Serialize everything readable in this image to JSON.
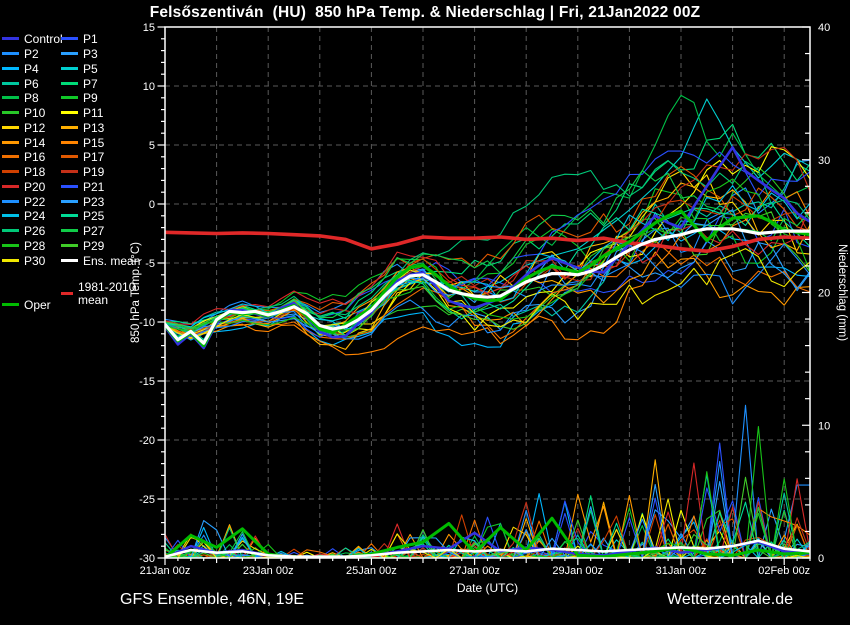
{
  "title": "Felsőszentiván  (HU)  850 hPa Temp. & Niederschlag | Fri, 21Jan2022 00Z",
  "footer": {
    "left": "GFS Ensemble, 46N, 19E",
    "right": "Wetterzentrale.de"
  },
  "axes": {
    "x_label": "Date (UTC)",
    "y_left_label": "850 hPa Temp. (°C)",
    "y_right_label": "Niederschlag (mm)",
    "y_left_ticks": [
      15,
      10,
      5,
      0,
      -5,
      -10,
      -15,
      -20,
      -25,
      -30
    ],
    "y_right_ticks": [
      40,
      30,
      20,
      10,
      0
    ],
    "x_tick_labels": [
      "21Jan 00z",
      "23Jan 00z",
      "25Jan 00z",
      "27Jan 00z",
      "29Jan 00z",
      "31Jan 00z",
      "02Feb 00z"
    ],
    "x_tick_days": [
      0,
      2,
      4,
      6,
      8,
      10,
      12
    ]
  },
  "legend": {
    "ens_mean_label": "Ens. mean",
    "climate_label": "1981-2010 mean",
    "oper_label": "Oper"
  },
  "chart_data": {
    "type": "line",
    "x_start": "21Jan2022 00Z",
    "x_days": 12.5,
    "explicit_step_hours": 6,
    "anchor_step_hours": 12,
    "temp_axis_range": [
      -30,
      15
    ],
    "precip_axis_range": [
      0,
      40
    ],
    "grid": {
      "x_every_days": 1,
      "y_every_degC": 5
    },
    "colors": {
      "ens_mean": "#ffffff",
      "climate_mean": "#e02828",
      "oper": "#00bb00",
      "control": "#3333e0"
    },
    "ens_mean_temp": [
      -10.2,
      -11.5,
      -10.8,
      -11.8,
      -9.8,
      -9.1,
      -9.2,
      -9.1,
      -9.4,
      -9.1,
      -8.7,
      -9.3,
      -10.3,
      -10.6,
      -10.4,
      -9.8,
      -9.0,
      -7.8,
      -6.8,
      -6.1,
      -6.0,
      -6.6,
      -7.3,
      -7.6,
      -7.8,
      -7.9,
      -7.8,
      -7.2,
      -6.6,
      -6.2,
      -5.9,
      -5.9,
      -6.0,
      -5.7,
      -5.2,
      -4.5,
      -3.9,
      -3.4,
      -3.0,
      -2.8,
      -2.6,
      -2.3,
      -2.1,
      -2.1,
      -2.1,
      -2.3,
      -2.5,
      -2.4,
      -2.3,
      -2.3,
      -2.3
    ],
    "oper_temp": [
      -10.3,
      -11.6,
      -10.9,
      -12.0,
      -9.9,
      -9.2,
      -9.3,
      -9.2,
      -9.5,
      -9.0,
      -8.6,
      -9.5,
      -10.6,
      -10.9,
      -10.2,
      -9.5,
      -8.8,
      -7.4,
      -6.2,
      -5.4,
      -5.2,
      -6.0,
      -6.9,
      -7.6,
      -8.0,
      -8.2,
      -8.1,
      -7.2,
      -6.3,
      -5.7,
      -5.3,
      -5.5,
      -5.8,
      -5.2,
      -4.4,
      -3.8,
      -3.2,
      -2.4,
      -1.6,
      -1.0,
      -0.6,
      -1.8,
      -3.1,
      -2.0,
      -1.2,
      -1.1,
      -1.0,
      -1.5,
      -2.2,
      -2.4,
      -2.6
    ],
    "control_temp": [
      -10.4,
      -11.9,
      -11.0,
      -12.2,
      -10.1,
      -9.0,
      -9.0,
      -9.3,
      -9.6,
      -8.8,
      -8.4,
      -9.6,
      -10.8,
      -11.3,
      -11.2,
      -10.1,
      -9.2,
      -7.8,
      -6.5,
      -6.0,
      -5.8,
      -7.0,
      -8.2,
      -8.6,
      -8.8,
      -8.4,
      -8.0,
      -7.0,
      -6.0,
      -5.2,
      -4.6,
      -5.0,
      -5.4,
      -5.7,
      -5.8,
      -4.6,
      -3.4,
      -2.2,
      -1.0,
      -1.6,
      -2.0,
      -0.2,
      1.5,
      3.2,
      4.8,
      2.8,
      2.0,
      1.2,
      0.5,
      -0.8,
      -1.5
    ],
    "member_P5_temp": [
      -10.1,
      -11.3,
      -10.6,
      -11.5,
      -9.7,
      -9.2,
      -9.5,
      -9.3,
      -9.2,
      -9.0,
      -8.9,
      -9.4,
      -9.8,
      -9.9,
      -9.6,
      -9.1,
      -8.6,
      -7.9,
      -7.2,
      -6.8,
      -6.4,
      -6.6,
      -6.8,
      -7.1,
      -7.4,
      -7.0,
      -6.6,
      -5.9,
      -5.2,
      -4.8,
      -4.4,
      -4.1,
      -3.8,
      -3.0,
      -2.2,
      -1.4,
      -0.5,
      0.5,
      1.5,
      2.8,
      4.0,
      6.5,
      8.9,
      7.0,
      4.8,
      3.5,
      2.2,
      3.2,
      4.3,
      3.8,
      3.2
    ],
    "member_P8_temp": [
      -10.0,
      -11.2,
      -10.5,
      -11.6,
      -9.6,
      -9.0,
      -9.4,
      -9.0,
      -9.7,
      -9.2,
      -8.2,
      -9.8,
      -11.2,
      -11.0,
      -10.8,
      -9.9,
      -8.4,
      -7.0,
      -6.0,
      -5.2,
      -5.0,
      -6.4,
      -8.0,
      -7.2,
      -6.5,
      -5.2,
      -4.0,
      -3.0,
      -2.0,
      -2.8,
      -3.5,
      -2.2,
      -1.0,
      0.0,
      1.0,
      0.8,
      0.5,
      2.8,
      5.0,
      7.5,
      9.2,
      8.6,
      5.3,
      4.0,
      6.0,
      4.2,
      2.5,
      1.5,
      0.5,
      1.0,
      1.5
    ],
    "climate_mean_temp": [
      -2.4,
      -2.45,
      -2.5,
      -2.45,
      -2.5,
      -2.6,
      -2.7,
      -3.0,
      -3.8,
      -3.4,
      -2.8,
      -2.9,
      -2.9,
      -2.8,
      -3.0,
      -2.9,
      -3.1,
      -2.9,
      -3.3,
      -3.5,
      -3.8,
      -4.0,
      -3.6,
      -3.0,
      -2.8,
      -2.9
    ],
    "member_spread_halfwidth": [
      0.5,
      0.8,
      0.9,
      1.0,
      1.1,
      1.3,
      1.6,
      1.9,
      2.2,
      2.4,
      2.6,
      2.9,
      3.2,
      3.4,
      3.7,
      4.0,
      4.2,
      4.4,
      4.7,
      5.0,
      5.2,
      5.4,
      5.6,
      5.8,
      6.0,
      6.0
    ],
    "ens_mean_precip": [
      0.1,
      0.6,
      0.4,
      0.5,
      0.2,
      0.1,
      0.1,
      0.1,
      0.2,
      0.4,
      0.5,
      0.6,
      0.5,
      0.6,
      0.5,
      0.7,
      0.6,
      0.5,
      0.6,
      0.7,
      0.8,
      0.7,
      0.9,
      1.3,
      0.7,
      0.5
    ],
    "oper_precip": [
      0.0,
      1.7,
      0.8,
      2.2,
      0.3,
      0.0,
      0.0,
      0.1,
      0.3,
      0.8,
      1.2,
      2.6,
      0.4,
      2.3,
      0.6,
      3.0,
      0.2,
      0.1,
      0.3,
      0.5,
      0.8,
      0.3,
      0.2,
      0.6,
      0.3,
      0.4
    ],
    "control_precip": [
      0.0,
      0.9,
      0.4,
      0.6,
      0.2,
      0.1,
      0.0,
      0.1,
      0.2,
      0.5,
      0.9,
      0.7,
      1.9,
      0.5,
      0.8,
      0.6,
      0.3,
      0.2,
      0.5,
      0.8,
      0.4,
      0.6,
      0.9,
      1.2,
      0.5,
      0.3
    ],
    "precip_event_intensity": [
      0.6,
      1.2,
      1.0,
      0.8,
      0.5,
      0.3,
      0.2,
      0.3,
      0.5,
      0.9,
      1.2,
      1.4,
      1.3,
      1.4,
      1.5,
      1.8,
      1.6,
      1.5,
      1.8,
      2.2,
      2.6,
      2.8,
      3.0,
      3.4,
      2.4,
      1.8
    ],
    "precip_feature_spikes": [
      {
        "member": "P4",
        "step6h": 3,
        "mm": 2.3
      },
      {
        "member": "P27",
        "step6h": 6,
        "mm": 2.0
      },
      {
        "member": "P19",
        "step6h": 28,
        "mm": 4.2
      },
      {
        "member": "P21",
        "step6h": 31,
        "mm": 4.3
      },
      {
        "member": "P14",
        "step6h": 32,
        "mm": 4.8
      },
      {
        "member": "P13",
        "step6h": 38,
        "mm": 7.4
      },
      {
        "member": "P11",
        "step6h": 40,
        "mm": 3.6
      },
      {
        "member": "P24",
        "step6h": 42,
        "mm": 6.3
      },
      {
        "member": "P22",
        "step6h": 45,
        "mm": 11.5
      },
      {
        "member": "P28",
        "step6h": 46,
        "mm": 9.9
      },
      {
        "member": "P6",
        "step6h": 48,
        "mm": 4.9
      }
    ],
    "members": [
      {
        "name": "Control",
        "color": "#3333e0"
      },
      {
        "name": "P1",
        "color": "#2a50ff"
      },
      {
        "name": "P2",
        "color": "#1e90ff"
      },
      {
        "name": "P3",
        "color": "#2aa0ff"
      },
      {
        "name": "P4",
        "color": "#00b8ff"
      },
      {
        "name": "P5",
        "color": "#00d0d0"
      },
      {
        "name": "P6",
        "color": "#00c8a0"
      },
      {
        "name": "P7",
        "color": "#00dc78"
      },
      {
        "name": "P8",
        "color": "#00c048"
      },
      {
        "name": "P9",
        "color": "#10c828"
      },
      {
        "name": "P10",
        "color": "#28c828"
      },
      {
        "name": "P11",
        "color": "#ffff00"
      },
      {
        "name": "P12",
        "color": "#ffd800"
      },
      {
        "name": "P13",
        "color": "#ffb000"
      },
      {
        "name": "P14",
        "color": "#ff9800"
      },
      {
        "name": "P15",
        "color": "#ff8400"
      },
      {
        "name": "P16",
        "color": "#f07000"
      },
      {
        "name": "P17",
        "color": "#e05800"
      },
      {
        "name": "P18",
        "color": "#d04000"
      },
      {
        "name": "P19",
        "color": "#c43018"
      },
      {
        "name": "P20",
        "color": "#d82828"
      },
      {
        "name": "P21",
        "color": "#2a50ff"
      },
      {
        "name": "P22",
        "color": "#1e90ff"
      },
      {
        "name": "P23",
        "color": "#2aa0ff"
      },
      {
        "name": "P24",
        "color": "#00c0e8"
      },
      {
        "name": "P25",
        "color": "#00dc96"
      },
      {
        "name": "P26",
        "color": "#00c878"
      },
      {
        "name": "P27",
        "color": "#10cc48"
      },
      {
        "name": "P28",
        "color": "#18c418"
      },
      {
        "name": "P29",
        "color": "#40cc28"
      },
      {
        "name": "P30",
        "color": "#f0e800"
      }
    ]
  }
}
